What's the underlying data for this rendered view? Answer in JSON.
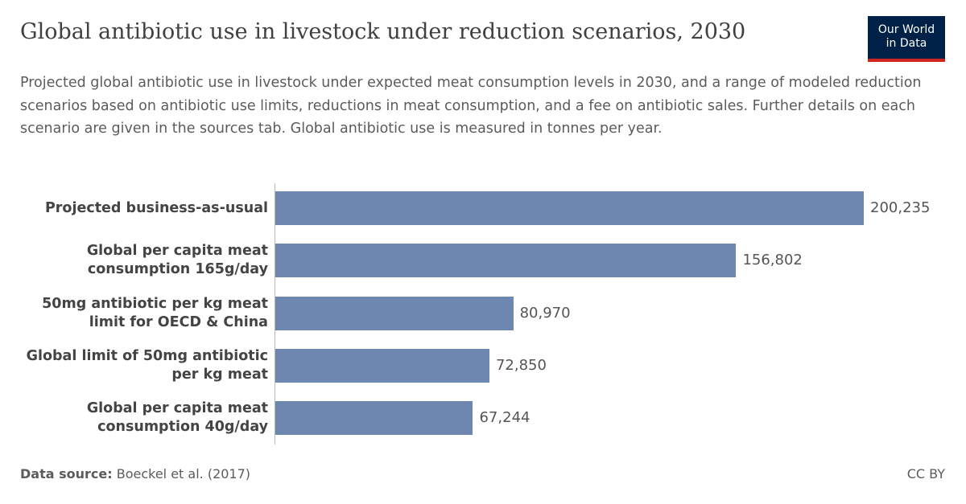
{
  "chart_data": {
    "type": "bar",
    "orientation": "horizontal",
    "title": "Global antibiotic use in livestock under reduction scenarios, 2030",
    "subtitle": "Projected global antibiotic use in livestock under expected meat consumption levels in 2030, and a range of modeled reduction scenarios based on antibiotic use limits, reductions in meat consumption, and a fee on antibiotic sales. Further details on each scenario are given in the sources tab. Global antibiotic use is measured in tonnes per year.",
    "categories": [
      "Projected business-as-usual",
      "Global per capita meat consumption 165g/day",
      "50mg antibiotic per kg meat limit for OECD & China",
      "Global limit of 50mg antibiotic per kg meat",
      "Global per capita meat consumption 40g/day"
    ],
    "values": [
      200235,
      156802,
      80970,
      72850,
      67244
    ],
    "value_labels": [
      "200,235",
      "156,802",
      "80,970",
      "72,850",
      "67,244"
    ],
    "color": "#6d87b0",
    "source_label": "Data source:",
    "source": "Boeckel et al. (2017)",
    "license": "CC BY",
    "logo": [
      "Our World",
      "in Data"
    ]
  }
}
